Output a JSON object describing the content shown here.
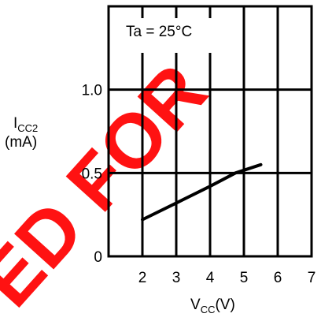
{
  "chart_data": {
    "type": "line",
    "annotation": "Ta = 25°C",
    "xlabel": {
      "main": "V",
      "sub": "CC",
      "unit": "(V)"
    },
    "ylabel": {
      "main": "I",
      "sub": "CC2",
      "unit": "(mA)"
    },
    "x_ticks": [
      2,
      3,
      4,
      5,
      6,
      7
    ],
    "y_ticks": [
      0,
      0.5,
      1.0
    ],
    "y_tick_labels": [
      "0",
      "0.5",
      "1.0"
    ],
    "xlim": [
      1,
      7
    ],
    "ylim": [
      0,
      1.5
    ],
    "grid": true,
    "series": [
      {
        "x": [
          2,
          3,
          4,
          4.75,
          5.5
        ],
        "y": [
          0.22,
          0.32,
          0.42,
          0.5,
          0.55
        ]
      }
    ],
    "colors": {
      "line": "#000000",
      "watermark": "#ff0000"
    },
    "watermark_text": "ED FOR"
  }
}
